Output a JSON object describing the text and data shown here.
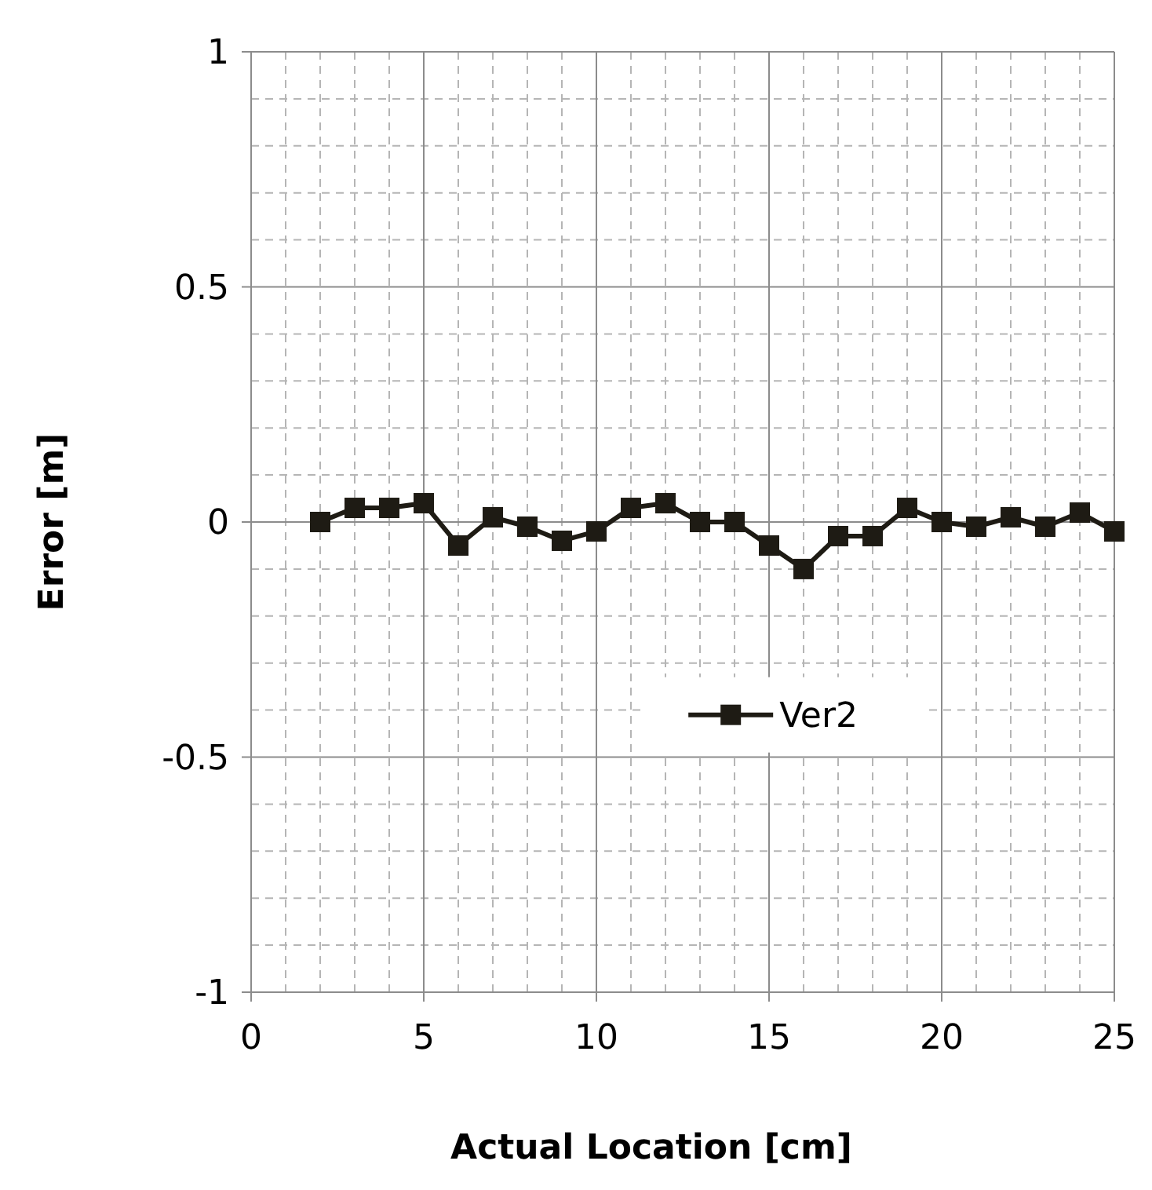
{
  "chart_data": {
    "type": "line",
    "xlabel": "Actual Location [cm]",
    "ylabel": "Error [m]",
    "x": [
      2,
      3,
      4,
      5,
      6,
      7,
      8,
      9,
      10,
      11,
      12,
      13,
      14,
      15,
      16,
      17,
      18,
      19,
      20,
      21,
      22,
      23,
      24,
      25
    ],
    "series": [
      {
        "name": "Ver2",
        "color": "#1e1b14",
        "values": [
          0,
          0.03,
          0.03,
          0.04,
          -0.05,
          0.01,
          -0.01,
          -0.04,
          -0.02,
          0.03,
          0.04,
          0,
          0,
          -0.05,
          -0.1,
          -0.03,
          -0.03,
          0.03,
          0,
          -0.01,
          0.01,
          -0.01,
          0.02,
          -0.02
        ]
      }
    ],
    "xlim": [
      0,
      25
    ],
    "xticks": [
      0,
      5,
      10,
      15,
      20,
      25
    ],
    "ylim": [
      -1,
      1
    ],
    "yticks": [
      -1,
      -0.5,
      0,
      0.5,
      1
    ],
    "grid": true,
    "legend": "center",
    "marker": "square",
    "line_style": "solid"
  }
}
